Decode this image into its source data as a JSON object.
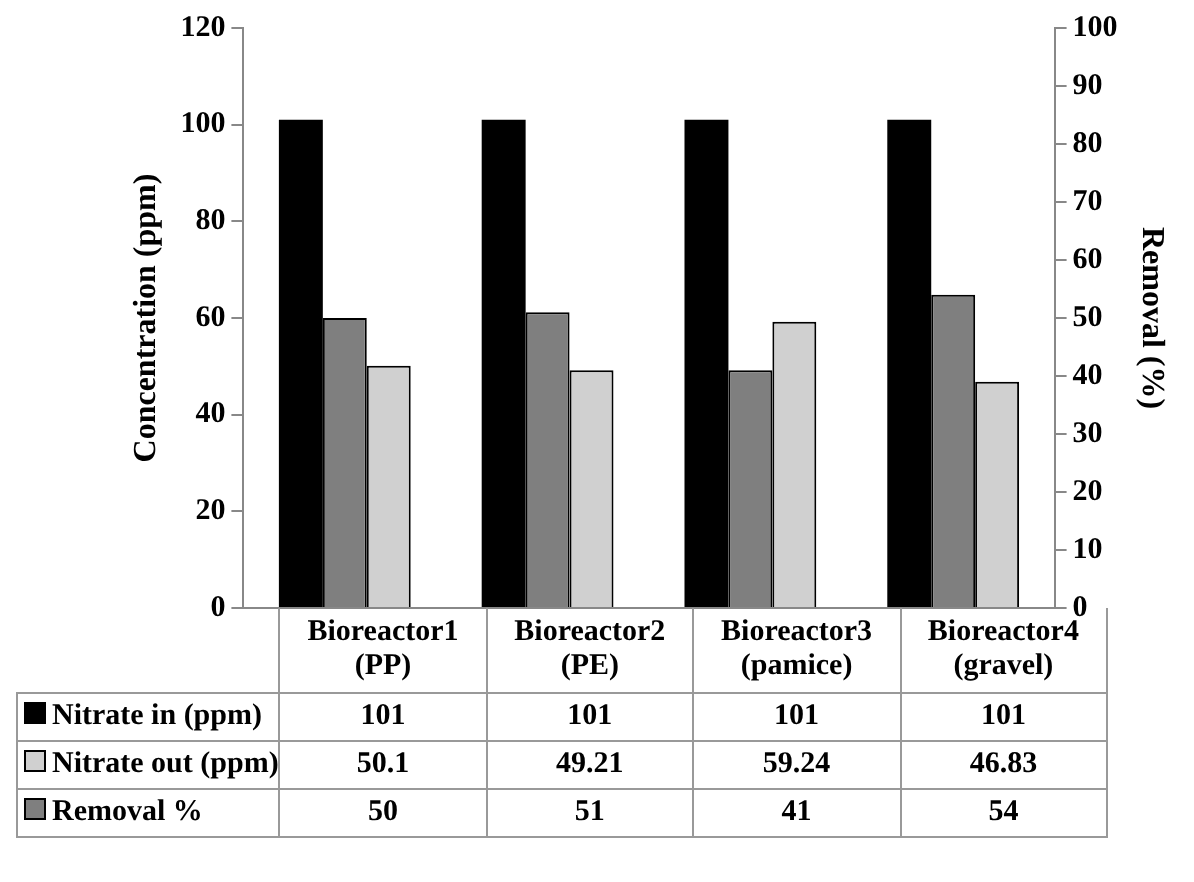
{
  "chart_data": {
    "type": "bar",
    "ylabel": "Concentration (ppm)",
    "y2label": "Removal (%)",
    "categories": [
      "Bioreactor1 (PP)",
      "Bioreactor2 (PE)",
      "Bioreactor3 (pamice)",
      "Bioreactor4 (gravel)"
    ],
    "series": [
      {
        "name": "Nitrate in (ppm)",
        "color": "#000000",
        "values": [
          101,
          101,
          101,
          101
        ]
      },
      {
        "name": "Removal %",
        "color": "#7f7f7f",
        "axis": "y2",
        "values": [
          50,
          51,
          41,
          54
        ]
      },
      {
        "name": "Nitrate out (ppm)",
        "color": "#d0d0d0",
        "values": [
          50.1,
          49.21,
          59.24,
          46.83
        ]
      }
    ],
    "ylim": [
      0,
      120
    ],
    "yticks": [
      0,
      20,
      40,
      60,
      80,
      100,
      120
    ],
    "y2lim": [
      0,
      100
    ],
    "y2ticks": [
      0,
      10,
      20,
      30,
      40,
      50,
      60,
      70,
      80,
      90,
      100
    ],
    "grid": false,
    "legend": "bottom",
    "data_labels": true
  }
}
